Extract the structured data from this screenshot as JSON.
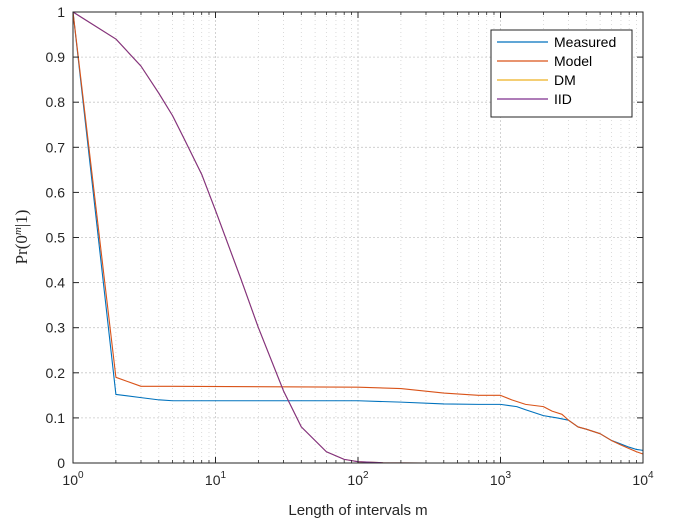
{
  "chart_data": {
    "type": "line",
    "x_scale": "log",
    "xlim": [
      1,
      10000
    ],
    "ylim": [
      0,
      1
    ],
    "grid": true,
    "legend_position": "top-right",
    "xlabel": "Length of intervals m",
    "ylabel": {
      "pre": "Pr(0",
      "sup": "m",
      "post": "|1)"
    },
    "x_ticks": [
      {
        "value": 1,
        "base": "10",
        "exp": "0"
      },
      {
        "value": 10,
        "base": "10",
        "exp": "1"
      },
      {
        "value": 100,
        "base": "10",
        "exp": "2"
      },
      {
        "value": 1000,
        "base": "10",
        "exp": "3"
      },
      {
        "value": 10000,
        "base": "10",
        "exp": "4"
      }
    ],
    "y_ticks": [
      {
        "value": 0,
        "label": "0"
      },
      {
        "value": 0.1,
        "label": "0.1"
      },
      {
        "value": 0.2,
        "label": "0.2"
      },
      {
        "value": 0.3,
        "label": "0.3"
      },
      {
        "value": 0.4,
        "label": "0.4"
      },
      {
        "value": 0.5,
        "label": "0.5"
      },
      {
        "value": 0.6,
        "label": "0.6"
      },
      {
        "value": 0.7,
        "label": "0.7"
      },
      {
        "value": 0.8,
        "label": "0.8"
      },
      {
        "value": 0.9,
        "label": "0.9"
      },
      {
        "value": 1,
        "label": "1"
      }
    ],
    "series": [
      {
        "name": "Measured",
        "color": "#0072BD",
        "x": [
          1,
          2,
          3,
          4,
          5,
          100,
          200,
          400,
          700,
          1000,
          1300,
          1500,
          2000,
          2500,
          3000,
          3500,
          4000,
          5000,
          6000,
          7000,
          8000,
          9000,
          10000
        ],
        "y": [
          1,
          0.152,
          0.145,
          0.14,
          0.138,
          0.138,
          0.135,
          0.131,
          0.13,
          0.13,
          0.125,
          0.118,
          0.105,
          0.1,
          0.095,
          0.08,
          0.075,
          0.065,
          0.05,
          0.042,
          0.035,
          0.03,
          0.028
        ]
      },
      {
        "name": "Model",
        "color": "#D95319",
        "x": [
          1,
          2,
          3,
          4,
          5,
          100,
          200,
          400,
          700,
          1000,
          1200,
          1500,
          2000,
          2300,
          2700,
          3000,
          3500,
          4000,
          5000,
          6000,
          7000,
          8000,
          9000,
          10000
        ],
        "y": [
          1,
          0.19,
          0.17,
          0.17,
          0.17,
          0.168,
          0.165,
          0.155,
          0.15,
          0.15,
          0.14,
          0.13,
          0.125,
          0.115,
          0.108,
          0.095,
          0.08,
          0.075,
          0.065,
          0.05,
          0.04,
          0.032,
          0.025,
          0.02
        ]
      },
      {
        "name": "DM",
        "color": "#EDB120",
        "x": [
          1,
          2,
          3,
          4,
          5,
          6,
          8,
          10,
          15,
          20,
          30,
          40,
          60,
          80,
          100,
          150,
          300,
          10000
        ],
        "y": [
          1,
          0.94,
          0.88,
          0.82,
          0.77,
          0.72,
          0.64,
          0.56,
          0.41,
          0.3,
          0.16,
          0.08,
          0.025,
          0.008,
          0.003,
          0.0005,
          0,
          0
        ]
      },
      {
        "name": "IID",
        "color": "#7E2F8E",
        "x": [
          1,
          2,
          3,
          4,
          5,
          6,
          8,
          10,
          15,
          20,
          30,
          40,
          60,
          80,
          100,
          150,
          300,
          10000
        ],
        "y": [
          1,
          0.94,
          0.88,
          0.82,
          0.77,
          0.72,
          0.64,
          0.56,
          0.41,
          0.3,
          0.16,
          0.08,
          0.025,
          0.008,
          0.003,
          0.0005,
          0,
          0
        ]
      }
    ]
  }
}
